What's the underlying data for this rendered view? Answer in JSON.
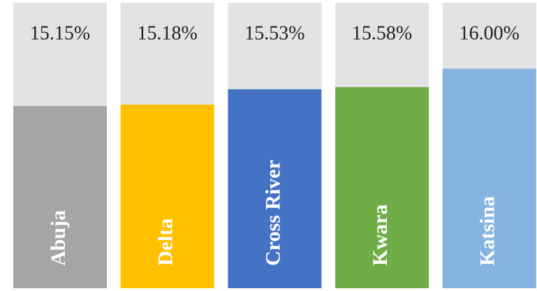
{
  "chart_data": {
    "type": "bar",
    "categories": [
      "Abuja",
      "Delta",
      "Cross River",
      "Kwara",
      "Katsina"
    ],
    "values": [
      15.15,
      15.18,
      15.53,
      15.58,
      16.0
    ],
    "value_labels": [
      "15.15%",
      "15.18%",
      "15.53%",
      "15.58%",
      "16.00%"
    ],
    "colors": [
      "#a5a5a5",
      "#ffc000",
      "#4472c4",
      "#70ad47",
      "#86b4e0"
    ],
    "ylim": [
      11,
      17.5
    ]
  }
}
